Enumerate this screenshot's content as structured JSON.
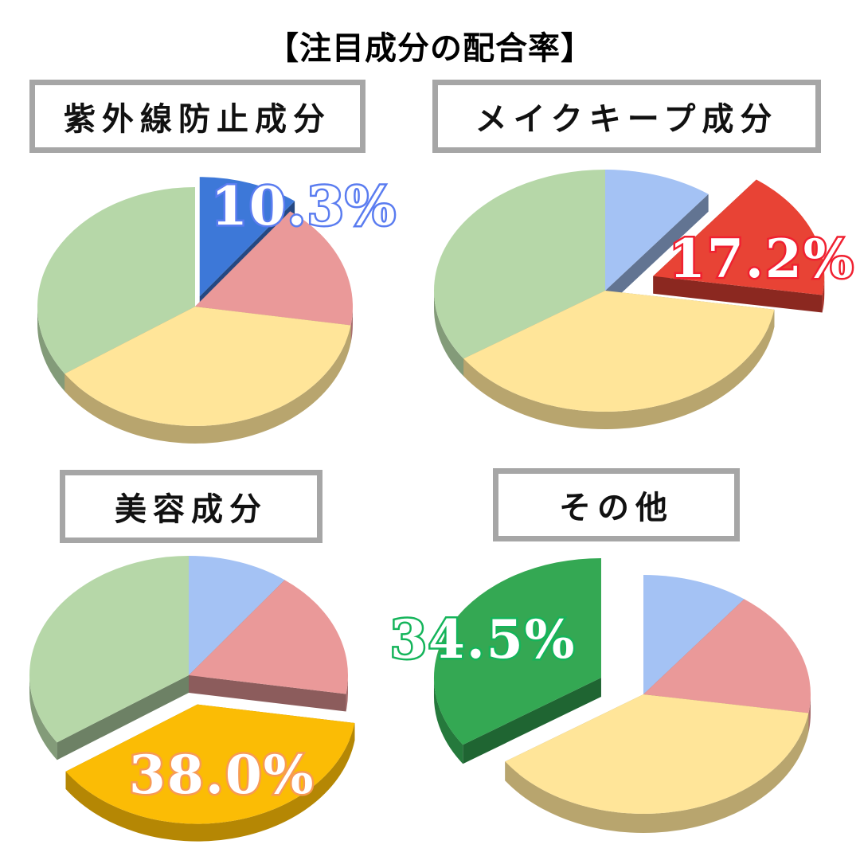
{
  "title": "【注目成分の配合率】",
  "panels": [
    {
      "label": "紫外線防止成分",
      "highlight": "10.3%",
      "highlight_color": "#3d78d8",
      "label_outline": "#5a7cf0"
    },
    {
      "label": "メイクキープ成分",
      "highlight": "17.2%",
      "highlight_color": "#e84335",
      "label_outline": "#f02030"
    },
    {
      "label": "美容成分",
      "highlight": "38.0%",
      "highlight_color": "#fbbc05",
      "label_outline": "#f79a55"
    },
    {
      "label": "その他",
      "highlight": "34.5%",
      "highlight_color": "#34a853",
      "label_outline": "#14b45a"
    }
  ],
  "colors": {
    "blue_light": "#a4c2f4",
    "red_light": "#ea9999",
    "yellow_light": "#ffe599",
    "green_light": "#b6d7a8",
    "blue_strong": "#3d78d8",
    "red_strong": "#e84335",
    "yellow_strong": "#fbbc05",
    "green_strong": "#34a853"
  },
  "chart_data": [
    {
      "type": "pie",
      "title": "紫外線防止成分",
      "categories": [
        "紫外線防止成分",
        "メイクキープ成分",
        "美容成分",
        "その他"
      ],
      "values": [
        10.3,
        17.2,
        38.0,
        34.5
      ],
      "exploded": "紫外線防止成分",
      "annotation": "10.3%"
    },
    {
      "type": "pie",
      "title": "メイクキープ成分",
      "categories": [
        "紫外線防止成分",
        "メイクキープ成分",
        "美容成分",
        "その他"
      ],
      "values": [
        10.3,
        17.2,
        38.0,
        34.5
      ],
      "exploded": "メイクキープ成分",
      "annotation": "17.2%"
    },
    {
      "type": "pie",
      "title": "美容成分",
      "categories": [
        "紫外線防止成分",
        "メイクキープ成分",
        "美容成分",
        "その他"
      ],
      "values": [
        10.3,
        17.2,
        38.0,
        34.5
      ],
      "exploded": "美容成分",
      "annotation": "38.0%"
    },
    {
      "type": "pie",
      "title": "その他",
      "categories": [
        "紫外線防止成分",
        "メイクキープ成分",
        "美容成分",
        "その他"
      ],
      "values": [
        10.3,
        17.2,
        38.0,
        34.5
      ],
      "exploded": "その他",
      "annotation": "34.5%"
    }
  ]
}
